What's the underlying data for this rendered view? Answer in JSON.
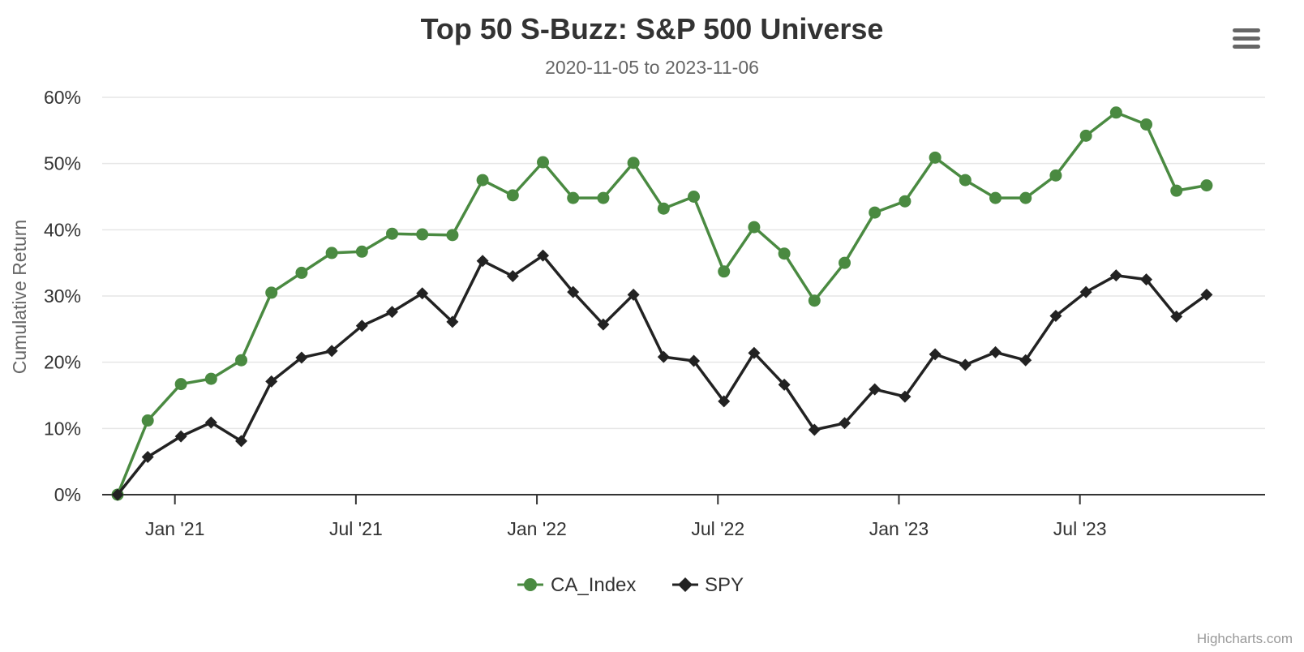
{
  "chart_data": {
    "type": "line",
    "title": "Top 50 S-Buzz: S&P 500 Universe",
    "subtitle": "2020-11-05 to 2023-11-06",
    "xlabel": "",
    "ylabel": "Cumulative Return",
    "y_unit": "%",
    "ylim": [
      0,
      60
    ],
    "yticks": [
      "0%",
      "10%",
      "20%",
      "30%",
      "40%",
      "50%",
      "60%"
    ],
    "ytick_values": [
      0,
      10,
      20,
      30,
      40,
      50,
      60
    ],
    "xlim": [
      -0.9,
      36.6
    ],
    "xtick_labels": [
      "Jan '21",
      "Jul '21",
      "Jan '22",
      "Jul '22",
      "Jan '23",
      "Jul '23"
    ],
    "xtick_positions": [
      1.0,
      7.0,
      13.0,
      19.0,
      25.0,
      31.0
    ],
    "x": [
      "2020-11-05",
      "2020-12",
      "2021-01",
      "2021-02",
      "2021-03",
      "2021-04",
      "2021-05",
      "2021-06",
      "2021-07",
      "2021-08",
      "2021-09",
      "2021-10",
      "2021-11",
      "2021-12",
      "2022-01",
      "2022-02",
      "2022-03",
      "2022-04",
      "2022-05",
      "2022-06",
      "2022-07",
      "2022-08",
      "2022-09",
      "2022-10",
      "2022-11",
      "2022-12",
      "2023-01",
      "2023-02",
      "2023-03",
      "2023-04",
      "2023-05",
      "2023-06",
      "2023-07",
      "2023-08",
      "2023-09",
      "2023-10",
      "2023-11-06"
    ],
    "x_positions": [
      -0.9,
      0.1,
      1.2,
      2.2,
      3.2,
      4.2,
      5.2,
      6.2,
      7.2,
      8.2,
      9.2,
      10.2,
      11.2,
      12.2,
      13.2,
      14.2,
      15.2,
      16.2,
      17.2,
      18.2,
      19.2,
      20.2,
      21.2,
      22.2,
      23.2,
      24.2,
      25.2,
      26.2,
      27.2,
      28.2,
      29.2,
      30.2,
      31.2,
      32.2,
      33.2,
      34.2,
      35.2
    ],
    "series": [
      {
        "name": "CA_Index",
        "color": "#4a8a41",
        "marker": "circle",
        "values": [
          0,
          11.2,
          16.7,
          17.5,
          20.3,
          30.5,
          33.5,
          36.5,
          36.7,
          39.4,
          39.3,
          39.2,
          47.5,
          45.2,
          50.2,
          44.8,
          44.8,
          50.1,
          43.2,
          45.0,
          33.7,
          40.4,
          36.4,
          29.3,
          35.0,
          42.6,
          44.3,
          50.9,
          47.5,
          44.8,
          44.8,
          48.2,
          54.2,
          57.7,
          55.9,
          45.9,
          46.7
        ]
      },
      {
        "name": "SPY",
        "color": "#222222",
        "marker": "diamond",
        "values": [
          0,
          5.7,
          8.8,
          10.9,
          8.1,
          17.1,
          20.7,
          21.7,
          25.5,
          27.6,
          30.4,
          26.1,
          35.3,
          33.0,
          36.1,
          30.6,
          25.7,
          30.2,
          20.8,
          20.2,
          14.1,
          21.4,
          16.6,
          9.8,
          10.8,
          15.9,
          14.8,
          21.2,
          19.6,
          21.5,
          20.3,
          27.0,
          30.6,
          33.1,
          32.5,
          26.9,
          30.2
        ]
      }
    ],
    "legend_position": "bottom-center",
    "grid": true
  },
  "legend": {
    "items": [
      "CA_Index",
      "SPY"
    ]
  },
  "credits": "Highcharts.com",
  "menu": {
    "icon": "hamburger-menu-icon"
  }
}
